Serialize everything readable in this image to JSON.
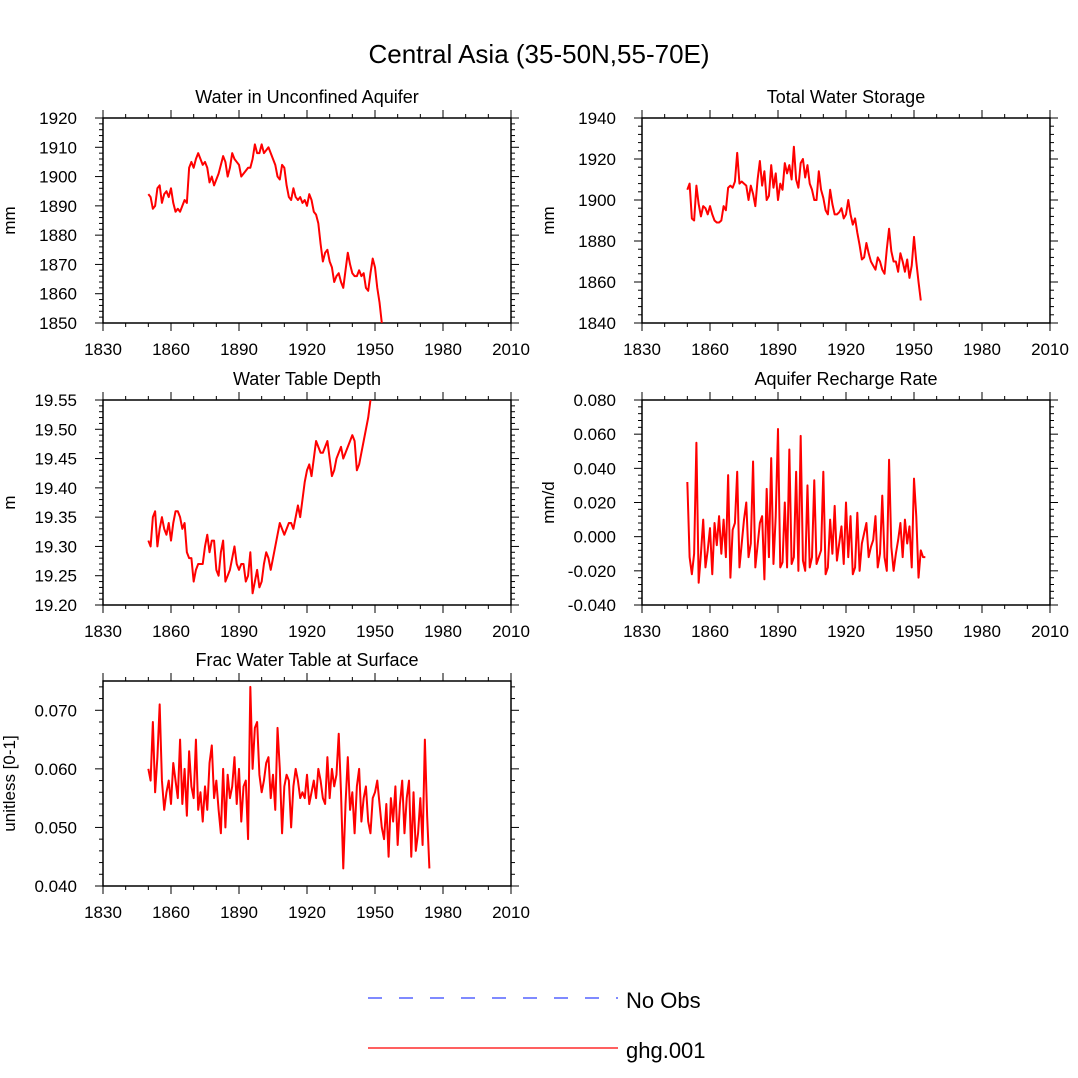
{
  "page": {
    "title": "Central Asia (35-50N,55-70E)"
  },
  "colors": {
    "model": "#ff0000",
    "obs": "#3344ff",
    "axis": "#000000"
  },
  "legend": {
    "items": [
      {
        "label": "No Obs",
        "style": "dashed",
        "color": "#3344ff"
      },
      {
        "label": "ghg.001",
        "style": "solid",
        "color": "#ff0000"
      }
    ]
  },
  "chart_data": [
    {
      "type": "line",
      "title": "Water in Unconfined Aquifer",
      "ylabel": "mm",
      "xlim": [
        1830,
        2010
      ],
      "ylim": [
        1850,
        1920
      ],
      "xticks": [
        1830,
        1860,
        1890,
        1920,
        1950,
        1980,
        2010
      ],
      "yticks": [
        1850,
        1860,
        1870,
        1880,
        1890,
        1900,
        1910,
        1920
      ],
      "ytick_labels": [
        "1850",
        "1860",
        "1870",
        "1880",
        "1890",
        "1900",
        "1910",
        "1920"
      ],
      "series": [
        {
          "name": "ghg.001",
          "x_start": 1850,
          "x_step": 1,
          "values": [
            1894,
            1893,
            1889,
            1890,
            1896,
            1897,
            1891,
            1894,
            1895,
            1893,
            1896,
            1891,
            1888,
            1889,
            1888,
            1890,
            1892,
            1891,
            1903,
            1905,
            1903,
            1906,
            1908,
            1906,
            1904,
            1905,
            1903,
            1898,
            1900,
            1897,
            1899,
            1901,
            1904,
            1907,
            1905,
            1900,
            1903,
            1908,
            1906,
            1905,
            1904,
            1900,
            1901,
            1902,
            1903,
            1903,
            1906,
            1911,
            1908,
            1908,
            1911,
            1908,
            1909,
            1910,
            1908,
            1906,
            1904,
            1900,
            1899,
            1904,
            1903,
            1897,
            1893,
            1892,
            1896,
            1893,
            1892,
            1893,
            1891,
            1892,
            1890,
            1894,
            1892,
            1888,
            1887,
            1884,
            1877,
            1871,
            1874,
            1875,
            1871,
            1869,
            1864,
            1866,
            1867,
            1864,
            1862,
            1868,
            1874,
            1870,
            1867,
            1866,
            1866,
            1868,
            1866,
            1867,
            1862,
            1861,
            1867,
            1872,
            1869,
            1862,
            1857,
            1850
          ]
        }
      ]
    },
    {
      "type": "line",
      "title": "Total Water Storage",
      "ylabel": "mm",
      "xlim": [
        1830,
        2010
      ],
      "ylim": [
        1840,
        1940
      ],
      "xticks": [
        1830,
        1860,
        1890,
        1920,
        1950,
        1980,
        2010
      ],
      "yticks": [
        1840,
        1860,
        1880,
        1900,
        1920,
        1940
      ],
      "ytick_labels": [
        "1840",
        "1860",
        "1880",
        "1900",
        "1920",
        "1940"
      ],
      "series": [
        {
          "name": "ghg.001",
          "x_start": 1850,
          "x_step": 1,
          "values": [
            1905,
            1908,
            1891,
            1890,
            1907,
            1898,
            1892,
            1897,
            1896,
            1893,
            1897,
            1893,
            1890,
            1889,
            1889,
            1890,
            1897,
            1895,
            1906,
            1907,
            1906,
            1909,
            1923,
            1908,
            1909,
            1908,
            1907,
            1900,
            1907,
            1903,
            1897,
            1910,
            1919,
            1907,
            1914,
            1900,
            1902,
            1917,
            1906,
            1913,
            1900,
            1908,
            1905,
            1918,
            1913,
            1917,
            1910,
            1926,
            1910,
            1906,
            1918,
            1920,
            1911,
            1917,
            1908,
            1905,
            1900,
            1900,
            1914,
            1905,
            1901,
            1895,
            1893,
            1905,
            1898,
            1893,
            1893,
            1894,
            1896,
            1891,
            1893,
            1900,
            1893,
            1888,
            1891,
            1884,
            1878,
            1871,
            1872,
            1879,
            1874,
            1870,
            1868,
            1866,
            1872,
            1870,
            1866,
            1864,
            1876,
            1886,
            1875,
            1870,
            1870,
            1865,
            1874,
            1870,
            1865,
            1871,
            1862,
            1868,
            1882,
            1870,
            1860,
            1851
          ]
        }
      ]
    },
    {
      "type": "line",
      "title": "Water Table Depth",
      "ylabel": "m",
      "xlim": [
        1830,
        2010
      ],
      "ylim": [
        19.2,
        19.55
      ],
      "xticks": [
        1830,
        1860,
        1890,
        1920,
        1950,
        1980,
        2010
      ],
      "yticks": [
        19.2,
        19.25,
        19.3,
        19.35,
        19.4,
        19.45,
        19.5,
        19.55
      ],
      "ytick_labels": [
        "19.20",
        "19.25",
        "19.30",
        "19.35",
        "19.40",
        "19.45",
        "19.50",
        "19.55"
      ],
      "series": [
        {
          "name": "ghg.001",
          "x_start": 1850,
          "x_step": 1,
          "values": [
            19.31,
            19.3,
            19.35,
            19.36,
            19.3,
            19.33,
            19.35,
            19.33,
            19.32,
            19.34,
            19.31,
            19.34,
            19.36,
            19.36,
            19.35,
            19.33,
            19.34,
            19.29,
            19.28,
            19.28,
            19.24,
            19.26,
            19.27,
            19.27,
            19.27,
            19.3,
            19.32,
            19.29,
            19.31,
            19.31,
            19.26,
            19.25,
            19.29,
            19.31,
            19.24,
            19.25,
            19.26,
            19.28,
            19.3,
            19.27,
            19.26,
            19.27,
            19.27,
            19.24,
            19.25,
            19.29,
            19.22,
            19.24,
            19.26,
            19.23,
            19.24,
            19.27,
            19.29,
            19.28,
            19.26,
            19.28,
            19.3,
            19.32,
            19.34,
            19.33,
            19.32,
            19.33,
            19.34,
            19.34,
            19.33,
            19.35,
            19.37,
            19.35,
            19.38,
            19.41,
            19.43,
            19.44,
            19.42,
            19.45,
            19.48,
            19.47,
            19.46,
            19.46,
            19.47,
            19.48,
            19.45,
            19.42,
            19.43,
            19.45,
            19.46,
            19.47,
            19.45,
            19.46,
            19.47,
            19.48,
            19.49,
            19.48,
            19.43,
            19.44,
            19.46,
            19.48,
            19.5,
            19.52,
            19.55
          ]
        }
      ]
    },
    {
      "type": "line",
      "title": "Aquifer Recharge Rate",
      "ylabel": "mm/d",
      "xlim": [
        1830,
        2010
      ],
      "ylim": [
        -0.04,
        0.08
      ],
      "xticks": [
        1830,
        1860,
        1890,
        1920,
        1950,
        1980,
        2010
      ],
      "yticks": [
        -0.04,
        -0.02,
        0.0,
        0.02,
        0.04,
        0.06,
        0.08
      ],
      "ytick_labels": [
        "-0.040",
        "-0.020",
        "0.000",
        "0.020",
        "0.040",
        "0.060",
        "0.080"
      ],
      "series": [
        {
          "name": "ghg.001",
          "x_start": 1850,
          "x_step": 1,
          "values": [
            0.032,
            -0.012,
            -0.022,
            -0.01,
            0.055,
            -0.027,
            -0.01,
            0.01,
            -0.018,
            -0.008,
            0.005,
            -0.022,
            0.008,
            -0.005,
            0.012,
            -0.01,
            0.01,
            -0.012,
            0.036,
            -0.024,
            0.004,
            0.008,
            0.038,
            -0.018,
            -0.004,
            0.01,
            0.02,
            -0.012,
            -0.004,
            0.044,
            -0.018,
            -0.005,
            0.008,
            0.012,
            -0.025,
            0.028,
            -0.012,
            0.046,
            -0.016,
            0.012,
            0.063,
            -0.018,
            -0.015,
            0.02,
            -0.018,
            0.051,
            -0.016,
            -0.012,
            0.038,
            -0.02,
            0.059,
            -0.014,
            -0.02,
            0.03,
            -0.018,
            -0.012,
            0.033,
            -0.016,
            -0.012,
            -0.008,
            0.038,
            -0.022,
            -0.018,
            0.01,
            -0.01,
            0.018,
            -0.014,
            -0.004,
            0.006,
            -0.016,
            0.02,
            -0.012,
            0.012,
            -0.022,
            -0.018,
            0.014,
            -0.02,
            -0.004,
            0.002,
            0.008,
            -0.012,
            -0.006,
            -0.002,
            0.012,
            -0.018,
            -0.01,
            0.024,
            -0.012,
            -0.02,
            0.045,
            -0.006,
            -0.02,
            -0.01,
            -0.002,
            0.008,
            -0.012,
            0.01,
            -0.004,
            0.006,
            -0.018,
            0.034,
            0.012,
            -0.024,
            -0.008,
            -0.012,
            -0.012
          ]
        }
      ]
    },
    {
      "type": "line",
      "title": "Frac Water Table at Surface",
      "ylabel": "unitless [0-1]",
      "xlim": [
        1830,
        2010
      ],
      "ylim": [
        0.04,
        0.075
      ],
      "xticks": [
        1830,
        1860,
        1890,
        1920,
        1950,
        1980,
        2010
      ],
      "yticks": [
        0.04,
        0.05,
        0.06,
        0.07
      ],
      "ytick_labels": [
        "0.040",
        "0.050",
        "0.060",
        "0.070"
      ],
      "series": [
        {
          "name": "ghg.001",
          "x_start": 1850,
          "x_step": 1,
          "values": [
            0.06,
            0.058,
            0.068,
            0.056,
            0.062,
            0.071,
            0.058,
            0.053,
            0.056,
            0.058,
            0.054,
            0.061,
            0.058,
            0.055,
            0.065,
            0.054,
            0.06,
            0.052,
            0.063,
            0.057,
            0.055,
            0.065,
            0.053,
            0.056,
            0.051,
            0.057,
            0.053,
            0.061,
            0.064,
            0.055,
            0.058,
            0.053,
            0.049,
            0.06,
            0.05,
            0.059,
            0.055,
            0.057,
            0.062,
            0.054,
            0.06,
            0.051,
            0.057,
            0.058,
            0.048,
            0.074,
            0.06,
            0.067,
            0.068,
            0.059,
            0.056,
            0.058,
            0.061,
            0.062,
            0.055,
            0.059,
            0.053,
            0.067,
            0.06,
            0.049,
            0.057,
            0.059,
            0.058,
            0.05,
            0.057,
            0.06,
            0.058,
            0.055,
            0.056,
            0.055,
            0.059,
            0.054,
            0.056,
            0.058,
            0.055,
            0.06,
            0.058,
            0.055,
            0.054,
            0.062,
            0.055,
            0.06,
            0.057,
            0.059,
            0.066,
            0.056,
            0.043,
            0.054,
            0.062,
            0.053,
            0.056,
            0.049,
            0.057,
            0.06,
            0.051,
            0.055,
            0.057,
            0.051,
            0.049,
            0.055,
            0.056,
            0.058,
            0.054,
            0.05,
            0.048,
            0.054,
            0.045,
            0.055,
            0.051,
            0.057,
            0.047,
            0.054,
            0.058,
            0.049,
            0.055,
            0.058,
            0.045,
            0.056,
            0.046,
            0.049,
            0.055,
            0.047,
            0.065,
            0.052,
            0.043
          ]
        }
      ]
    }
  ]
}
